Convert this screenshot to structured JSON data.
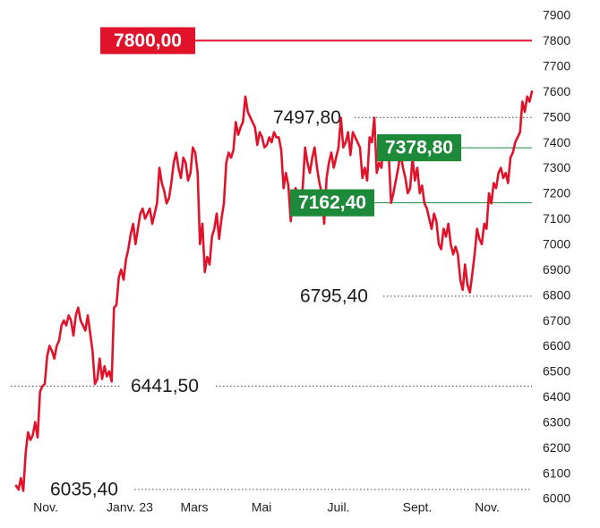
{
  "chart_data": {
    "type": "line",
    "title": "",
    "xlabel": "",
    "ylabel": "",
    "ylim": [
      6000,
      7900
    ],
    "yticks": [
      6000,
      6100,
      6200,
      6300,
      6400,
      6500,
      6600,
      6700,
      6800,
      6900,
      7000,
      7100,
      7200,
      7300,
      7400,
      7500,
      7600,
      7700,
      7800,
      7900
    ],
    "xtick_labels": [
      "Nov.",
      "Janv. 23",
      "Mars",
      "Mai",
      "Juil.",
      "Sept.",
      "Nov."
    ],
    "grid": false,
    "line_color": "#e0132b",
    "series": [
      {
        "values": [
          6050,
          6035,
          6080,
          6030,
          6180,
          6260,
          6230,
          6250,
          6300,
          6240,
          6420,
          6441,
          6450,
          6560,
          6600,
          6580,
          6550,
          6600,
          6620,
          6680,
          6700,
          6680,
          6720,
          6700,
          6640,
          6720,
          6750,
          6700,
          6680,
          6660,
          6720,
          6650,
          6580,
          6450,
          6470,
          6550,
          6470,
          6520,
          6480,
          6500,
          6460,
          6750,
          6760,
          6870,
          6900,
          6860,
          6940,
          6980,
          7040,
          7080,
          7000,
          7060,
          7120,
          7140,
          7100,
          7120,
          7140,
          7080,
          7120,
          7160,
          7300,
          7240,
          7210,
          7160,
          7180,
          7240,
          7320,
          7360,
          7300,
          7260,
          7340,
          7320,
          7250,
          7280,
          7380,
          7360,
          7280,
          7000,
          7080,
          6890,
          6950,
          6920,
          7030,
          7060,
          7120,
          7020,
          7100,
          7160,
          7320,
          7360,
          7340,
          7370,
          7480,
          7430,
          7460,
          7480,
          7580,
          7520,
          7500,
          7480,
          7460,
          7390,
          7440,
          7420,
          7380,
          7390,
          7420,
          7400,
          7440,
          7420,
          7420,
          7370,
          7220,
          7280,
          7230,
          7090,
          7180,
          7220,
          7200,
          7160,
          7220,
          7380,
          7320,
          7280,
          7340,
          7380,
          7300,
          7240,
          7200,
          7080,
          7260,
          7320,
          7360,
          7300,
          7340,
          7380,
          7497,
          7380,
          7400,
          7440,
          7350,
          7440,
          7420,
          7400,
          7380,
          7260,
          7300,
          7250,
          7420,
          7400,
          7497,
          7280,
          7320,
          7300,
          7420,
          7380,
          7360,
          7162,
          7200,
          7250,
          7300,
          7360,
          7300,
          7260,
          7200,
          7220,
          7340,
          7250,
          7300,
          7200,
          7230,
          7160,
          7140,
          7100,
          7060,
          7120,
          7090,
          7000,
          6980,
          7060,
          7030,
          7080,
          7000,
          6960,
          6990,
          6960,
          6860,
          6820,
          6920,
          6840,
          6810,
          6880,
          6960,
          7060,
          7020,
          7000,
          7080,
          7060,
          7200,
          7160,
          7240,
          7220,
          7280,
          7300,
          7260,
          7280,
          7240,
          7340,
          7360,
          7400,
          7420,
          7440,
          7560,
          7520,
          7580,
          7560,
          7600
        ]
      }
    ],
    "reference_lines": [
      {
        "value": 7800,
        "label": "7800,00",
        "style": "red-badge"
      },
      {
        "value": 7497.8,
        "label": "7497,80",
        "style": "dotted"
      },
      {
        "value": 7378.8,
        "label": "7378,80",
        "style": "green-badge"
      },
      {
        "value": 7162.4,
        "label": "7162,40",
        "style": "green-badge"
      },
      {
        "value": 6795.4,
        "label": "6795,40",
        "style": "dotted"
      },
      {
        "value": 6441.5,
        "label": "6441,50",
        "style": "dotted"
      },
      {
        "value": 6035.4,
        "label": "6035,40",
        "style": "dotted"
      }
    ],
    "colors": {
      "red": "#e0132b",
      "green": "#1d8a3a",
      "dotted": "#444444"
    }
  }
}
